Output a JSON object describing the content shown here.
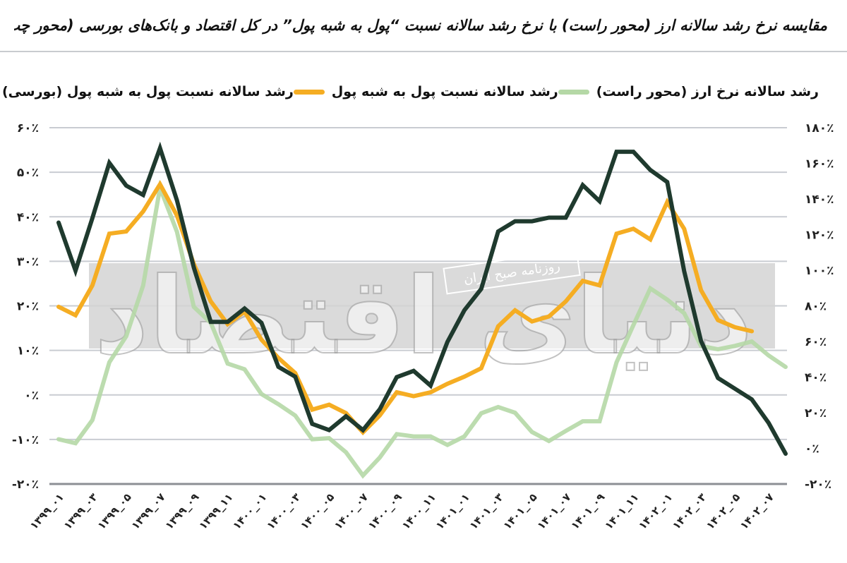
{
  "title": "مقایسه نرخ رشد سالانه ارز (محور راست) با نرخ رشد سالانه نسبت “پول به شبه پول” در کل اقتصاد و بانک‌های بورسی (محور چپ)",
  "legend": [
    {
      "label": "رشد سالانه نسبت پول به شبه پول (بورسی)",
      "color": "#1f3a2e"
    },
    {
      "label": "رشد سالانه نسبت پول به شبه پول",
      "color": "#f5ad23"
    },
    {
      "label": "رشد سالانه نرخ ارز (محور راست)",
      "color": "#b5d8a6"
    }
  ],
  "watermark": {
    "publisher": "روزنامه صبح ایران",
    "brand": "دنیای اقتصاد"
  },
  "colors": {
    "grid": "#c9ccd2",
    "axis_base": "#8c8f94",
    "watermark_box": "#d4d4d4"
  },
  "chart_data": {
    "type": "line",
    "title": "مقایسه نرخ رشد سالانه ارز (محور راست) با نرخ رشد سالانه نسبت “پول به شبه پول” در کل اقتصاد و بانک‌های بورسی (محور چپ)",
    "xlabel": "",
    "ylabel_left": "",
    "ylabel_right": "",
    "left_axis": {
      "ticks": [
        "۶۰٪",
        "۵۰٪",
        "۴۰٪",
        "۳۰٪",
        "۲۰٪",
        "۱۰٪",
        "۰٪",
        "-۱۰٪",
        "-۲۰٪"
      ],
      "ylim": [
        -20,
        60
      ]
    },
    "right_axis": {
      "ticks": [
        "۱۸۰٪",
        "۱۶۰٪",
        "۱۴۰٪",
        "۱۲۰٪",
        "۱۰۰٪",
        "۸۰٪",
        "۶۰٪",
        "۴۰٪",
        "۲۰٪",
        "۰٪",
        "-۲۰٪"
      ],
      "ylim": [
        -20,
        180
      ]
    },
    "grid": true,
    "legend_position": "top",
    "x": [
      "1399-01",
      "1399-02",
      "1399-03",
      "1399-04",
      "1399-05",
      "1399-06",
      "1399-07",
      "1399-08",
      "1399-09",
      "1399-10",
      "1399-11",
      "1399-12",
      "1400-01",
      "1400-02",
      "1400-03",
      "1400-04",
      "1400-05",
      "1400-06",
      "1400-07",
      "1400-08",
      "1400-09",
      "1400-10",
      "1400-11",
      "1400-12",
      "1401-01",
      "1401-02",
      "1401-03",
      "1401-04",
      "1401-05",
      "1401-06",
      "1401-07",
      "1401-08",
      "1401-09",
      "1401-10",
      "1401-11",
      "1401-12",
      "1402-01",
      "1402-02",
      "1402-03",
      "1402-04",
      "1402-05",
      "1402-06",
      "1402-07",
      "1402-08"
    ],
    "x_tick_labels": [
      "۱۳۹۹_۰۱",
      "۱۳۹۹_۰۳",
      "۱۳۹۹_۰۵",
      "۱۳۹۹_۰۷",
      "۱۳۹۹_۰۹",
      "۱۳۹۹_۱۱",
      "۱۴۰۰_۰۱",
      "۱۴۰۰_۰۳",
      "۱۴۰۰_۰۵",
      "۱۴۰۰_۰۷",
      "۱۴۰۰_۰۹",
      "۱۴۰۰_۱۱",
      "۱۴۰۱_۰۱",
      "۱۴۰۱_۰۳",
      "۱۴۰۱_۰۵",
      "۱۴۰۱_۰۷",
      "۱۴۰۱_۰۹",
      "۱۴۰۱_۱۱",
      "۱۴۰۲_۰۱",
      "۱۴۰۲_۰۳",
      "۱۴۰۲_۰۵",
      "۱۴۰۲_۰۷"
    ],
    "series": [
      {
        "name": "رشد سالانه نسبت پول به شبه پول (بورسی)",
        "axis": "left",
        "color": "#1f3a2e",
        "values": [
          38.7,
          27.9,
          39.7,
          52.1,
          47.0,
          44.9,
          55.4,
          43.7,
          28.6,
          16.4,
          16.4,
          19.4,
          16.2,
          6.3,
          4.1,
          -6.5,
          -7.9,
          -4.8,
          -7.9,
          -3.2,
          4.0,
          5.4,
          2.1,
          11.9,
          19.0,
          23.8,
          36.7,
          39.0,
          39.0,
          39.8,
          39.8,
          47.1,
          43.5,
          54.6,
          54.6,
          50.5,
          47.8,
          27.8,
          12.1,
          3.8,
          1.4,
          -1.0,
          -6.3,
          -13.2
        ]
      },
      {
        "name": "رشد سالانه نسبت پول به شبه پول",
        "axis": "left",
        "color": "#f5ad23",
        "values": [
          19.8,
          17.9,
          24.6,
          36.2,
          36.7,
          41.2,
          47.3,
          40.3,
          29.4,
          21.0,
          15.9,
          18.7,
          12.4,
          8.3,
          4.9,
          -3.3,
          -2.2,
          -4.1,
          -8.4,
          -4.6,
          0.6,
          -0.3,
          0.6,
          2.5,
          4.1,
          6.0,
          15.4,
          19.0,
          16.5,
          17.6,
          21.0,
          25.6,
          24.6,
          36.2,
          37.3,
          34.9,
          43.3,
          37.3,
          23.5,
          16.8,
          15.2,
          14.3,
          null,
          null
        ]
      },
      {
        "name": "رشد سالانه نرخ ارز (محور راست)",
        "axis": "right",
        "color": "#b5d8a6",
        "values": [
          5.1,
          2.9,
          15.9,
          48.3,
          62.9,
          91.4,
          146.3,
          121.6,
          79.4,
          70.5,
          47.6,
          44.4,
          30.5,
          24.8,
          18.4,
          5.1,
          5.7,
          -2.2,
          -15.2,
          -5.1,
          8.0,
          6.7,
          6.7,
          1.9,
          6.7,
          19.7,
          23.2,
          20.0,
          9.2,
          4.1,
          9.8,
          15.2,
          15.2,
          48.3,
          69.2,
          89.8,
          83.5,
          75.9,
          57.5,
          55.6,
          57.5,
          60.0,
          52.1,
          45.7
        ]
      }
    ]
  }
}
